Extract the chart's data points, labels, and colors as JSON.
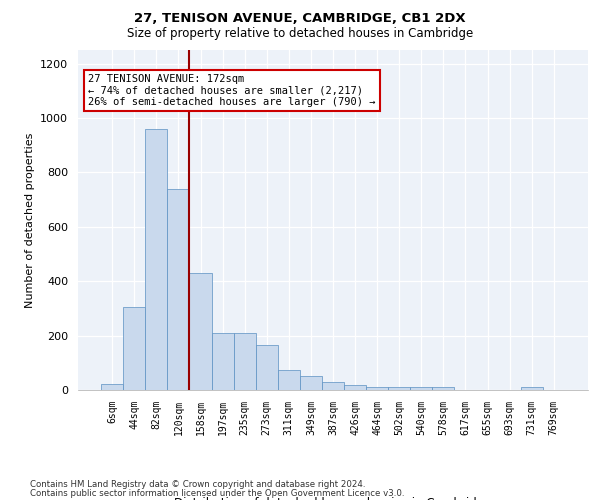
{
  "title1": "27, TENISON AVENUE, CAMBRIDGE, CB1 2DX",
  "title2": "Size of property relative to detached houses in Cambridge",
  "xlabel": "Distribution of detached houses by size in Cambridge",
  "ylabel": "Number of detached properties",
  "bar_color": "#c9d9ed",
  "bar_edge_color": "#5a8fc2",
  "categories": [
    "6sqm",
    "44sqm",
    "82sqm",
    "120sqm",
    "158sqm",
    "197sqm",
    "235sqm",
    "273sqm",
    "311sqm",
    "349sqm",
    "387sqm",
    "426sqm",
    "464sqm",
    "502sqm",
    "540sqm",
    "578sqm",
    "617sqm",
    "655sqm",
    "693sqm",
    "731sqm",
    "769sqm"
  ],
  "values": [
    22,
    305,
    960,
    740,
    430,
    210,
    210,
    165,
    75,
    50,
    30,
    20,
    10,
    10,
    10,
    10,
    0,
    0,
    0,
    12,
    0
  ],
  "ylim": [
    0,
    1250
  ],
  "yticks": [
    0,
    200,
    400,
    600,
    800,
    1000,
    1200
  ],
  "vline_x": 3.5,
  "annotation_text": "27 TENISON AVENUE: 172sqm\n← 74% of detached houses are smaller (2,217)\n26% of semi-detached houses are larger (790) →",
  "footer1": "Contains HM Land Registry data © Crown copyright and database right 2024.",
  "footer2": "Contains public sector information licensed under the Open Government Licence v3.0.",
  "box_color": "#cc0000",
  "background_color": "#edf2f9"
}
